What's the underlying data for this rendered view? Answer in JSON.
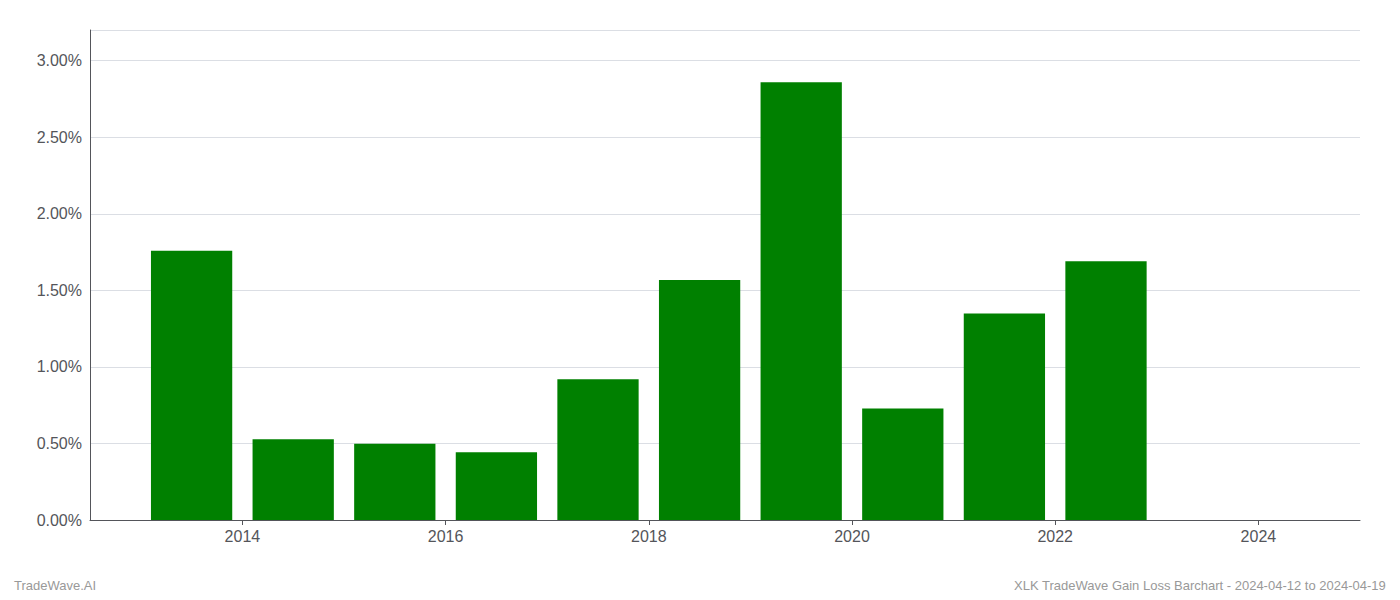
{
  "chart_data": {
    "type": "bar",
    "x": [
      2013.5,
      2014.5,
      2015.5,
      2016.5,
      2017.5,
      2018.5,
      2019.5,
      2020.5,
      2021.5,
      2022.5,
      2023.5
    ],
    "values": [
      0.01758,
      0.00528,
      0.00498,
      0.00442,
      0.0092,
      0.01568,
      0.02858,
      0.00728,
      0.01348,
      0.0169,
      0.0
    ],
    "color": "#008000",
    "xlim": [
      2012.5,
      2025.0
    ],
    "xticks": [
      2014,
      2016,
      2018,
      2020,
      2022,
      2024
    ],
    "ylim": [
      0,
      0.032
    ],
    "yticks": [
      {
        "value": 0.0,
        "label": "0.00%"
      },
      {
        "value": 0.005,
        "label": "0.50%"
      },
      {
        "value": 0.01,
        "label": "1.00%"
      },
      {
        "value": 0.015,
        "label": "1.50%"
      },
      {
        "value": 0.02,
        "label": "2.00%"
      },
      {
        "value": 0.025,
        "label": "2.50%"
      },
      {
        "value": 0.03,
        "label": "3.00%"
      }
    ],
    "grid": true,
    "annotations": [
      "TradeWave.AI",
      "XLK TradeWave Gain Loss Barchart - 2024-04-12 to 2024-04-19"
    ]
  }
}
